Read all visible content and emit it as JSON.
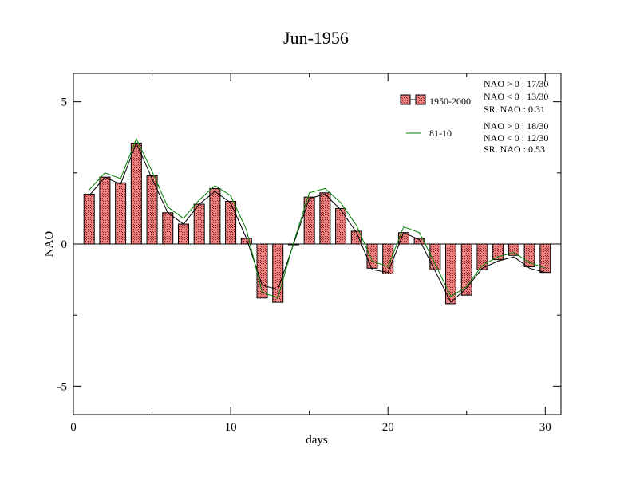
{
  "chart_data": {
    "type": "bar",
    "title": "Jun-1956",
    "xlabel": "days",
    "ylabel": "NAO",
    "xlim": [
      0,
      31
    ],
    "ylim": [
      -6,
      6
    ],
    "x_ticks": [
      0,
      10,
      20,
      30
    ],
    "y_ticks": [
      -5,
      0,
      5
    ],
    "grid": false,
    "legend_position": "top-right",
    "x": [
      1,
      2,
      3,
      4,
      5,
      6,
      7,
      8,
      9,
      10,
      11,
      12,
      13,
      14,
      15,
      16,
      17,
      18,
      19,
      20,
      21,
      22,
      23,
      24,
      25,
      26,
      27,
      28,
      29,
      30
    ],
    "series": [
      {
        "name": "1950-2000",
        "kind": "bar",
        "color": "#f08080",
        "values": [
          1.75,
          2.35,
          2.15,
          3.55,
          2.4,
          1.1,
          0.7,
          1.4,
          1.95,
          1.5,
          0.2,
          -1.9,
          -2.05,
          0.0,
          1.65,
          1.8,
          1.25,
          0.45,
          -0.85,
          -1.05,
          0.4,
          0.2,
          -0.9,
          -2.1,
          -1.8,
          -0.9,
          -0.55,
          -0.4,
          -0.8,
          -1.0
        ]
      },
      {
        "name": "",
        "kind": "line",
        "color": "#000000",
        "values": [
          1.7,
          2.35,
          2.1,
          3.55,
          2.3,
          1.1,
          0.7,
          1.4,
          1.85,
          1.45,
          0.2,
          -1.45,
          -1.6,
          0.0,
          1.6,
          1.75,
          1.2,
          0.4,
          -0.9,
          -1.0,
          0.4,
          0.15,
          -0.95,
          -2.05,
          -1.55,
          -0.85,
          -0.6,
          -0.45,
          -0.85,
          -1.0
        ]
      },
      {
        "name": "81-10",
        "kind": "line",
        "color": "#008000",
        "values": [
          1.9,
          2.5,
          2.3,
          3.7,
          2.55,
          1.3,
          0.9,
          1.55,
          2.05,
          1.7,
          0.5,
          -1.7,
          -1.9,
          0.05,
          1.8,
          1.95,
          1.45,
          0.65,
          -0.6,
          -0.8,
          0.6,
          0.4,
          -0.7,
          -1.85,
          -1.5,
          -0.75,
          -0.45,
          -0.3,
          -0.65,
          -0.85
        ]
      }
    ],
    "stats": {
      "s1950": [
        "NAO > 0 :  17/30",
        "NAO < 0 :  13/30",
        "SR. NAO :  0.31"
      ],
      "s8110": [
        "NAO > 0 :  18/30",
        "NAO < 0 :  12/30",
        "SR. NAO :  0.53"
      ]
    }
  }
}
